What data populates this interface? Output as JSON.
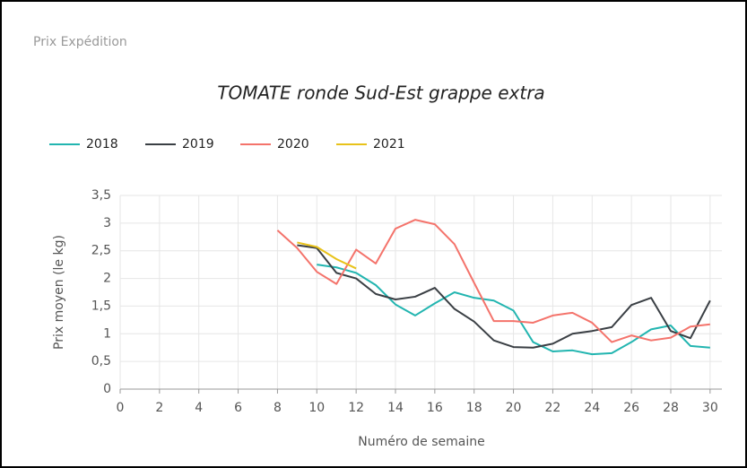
{
  "header": "Prix Expédition",
  "chart_data": {
    "type": "line",
    "title": "TOMATE ronde Sud-Est grappe extra",
    "xlabel": "Numéro de semaine",
    "ylabel": "Prix moyen  (le kg)",
    "xlim": [
      0,
      30.6
    ],
    "xticks": [
      0,
      2,
      4,
      6,
      8,
      10,
      12,
      14,
      16,
      18,
      20,
      22,
      24,
      26,
      28,
      30
    ],
    "ylim": [
      0,
      3.5
    ],
    "yticks": [
      0,
      {
        "value": 0.5,
        "label": "0,5"
      },
      1,
      {
        "value": 1.5,
        "label": "1,5"
      },
      2,
      {
        "value": 2.5,
        "label": "2,5"
      },
      3,
      {
        "value": 3.5,
        "label": "3,5"
      }
    ],
    "grid": true,
    "series": [
      {
        "name": "2018",
        "color": "#22b5b0",
        "x": [
          10,
          11,
          12,
          13,
          14,
          15,
          16,
          17,
          18,
          19,
          20,
          21,
          22,
          23,
          24,
          25,
          26,
          27,
          28,
          29,
          30
        ],
        "values": [
          2.25,
          2.2,
          2.1,
          1.88,
          1.53,
          1.33,
          1.55,
          1.75,
          1.65,
          1.6,
          1.42,
          0.85,
          0.68,
          0.7,
          0.63,
          0.65,
          0.85,
          1.08,
          1.15,
          0.78,
          0.75
        ]
      },
      {
        "name": "2019",
        "color": "#3a3f44",
        "x": [
          9,
          10,
          11,
          12,
          13,
          14,
          15,
          16,
          17,
          18,
          19,
          20,
          21,
          22,
          23,
          24,
          25,
          26,
          27,
          28,
          29,
          30
        ],
        "values": [
          2.6,
          2.55,
          2.1,
          2.0,
          1.72,
          1.62,
          1.67,
          1.83,
          1.45,
          1.22,
          0.88,
          0.76,
          0.75,
          0.82,
          1.0,
          1.05,
          1.12,
          1.52,
          1.65,
          1.05,
          0.92,
          1.6
        ]
      },
      {
        "name": "2020",
        "color": "#f4736b",
        "x": [
          8,
          9,
          10,
          11,
          12,
          13,
          14,
          15,
          16,
          17,
          18,
          19,
          20,
          21,
          22,
          23,
          24,
          25,
          26,
          27,
          28,
          29,
          30
        ],
        "values": [
          2.87,
          2.55,
          2.12,
          1.9,
          2.52,
          2.27,
          2.9,
          3.06,
          2.98,
          2.62,
          1.92,
          1.23,
          1.23,
          1.2,
          1.33,
          1.38,
          1.2,
          0.85,
          0.97,
          0.88,
          0.93,
          1.13,
          1.17
        ]
      },
      {
        "name": "2021",
        "color": "#e8c21a",
        "x": [
          9,
          10,
          11,
          12
        ],
        "values": [
          2.65,
          2.57,
          2.35,
          2.18
        ]
      }
    ]
  }
}
